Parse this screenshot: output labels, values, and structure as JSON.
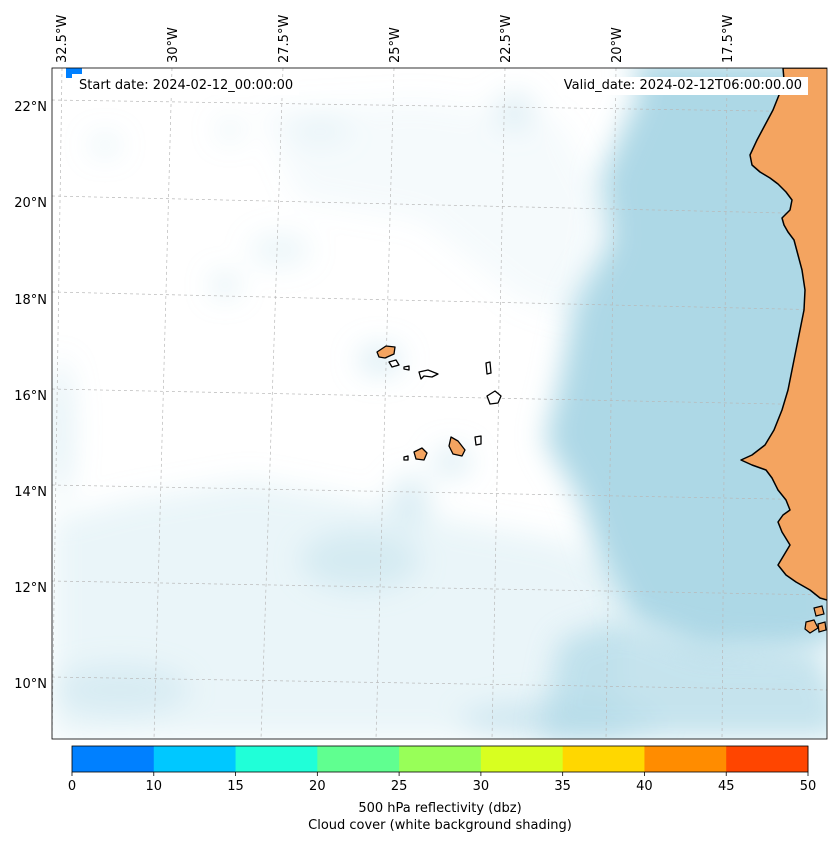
{
  "header": {
    "start_date": "Start date: 2024-02-12_00:00:00",
    "valid_date": "Valid_date: 2024-02-12T06:00:00.00"
  },
  "map": {
    "lon_labels": [
      "32.5°W",
      "30°W",
      "27.5°W",
      "25°W",
      "22.5°W",
      "20°W",
      "17.5°W"
    ],
    "lat_labels": [
      "22°N",
      "20°N",
      "18°N",
      "16°N",
      "14°N",
      "12°N",
      "10°N"
    ],
    "colors": {
      "land": "#f4a460",
      "cloud": "#add8e6",
      "ocean": "#ffffff",
      "coast": "#000000"
    }
  },
  "colorbar": {
    "ticks": [
      "0",
      "10",
      "15",
      "20",
      "25",
      "30",
      "35",
      "40",
      "45",
      "50"
    ],
    "colors": [
      "#0080ff",
      "#00c8ff",
      "#20ffd8",
      "#60ff90",
      "#98ff58",
      "#d8ff20",
      "#ffd700",
      "#ff8c00",
      "#ff4500"
    ],
    "label": "500 hPa reflectivity (dbz)",
    "sublabel": "Cloud cover (white background shading)"
  }
}
